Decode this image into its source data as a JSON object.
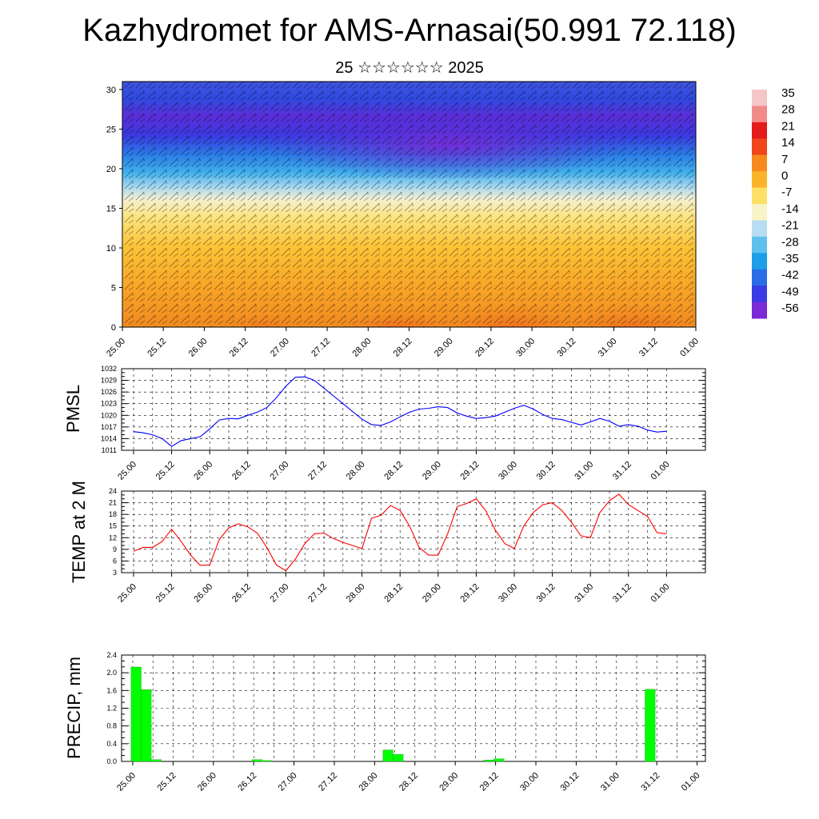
{
  "header": {
    "title": "Kazhydromet for AMS-Arnasai(50.991 72.118)",
    "subtitle": "25 ☆☆☆☆☆☆ 2025"
  },
  "colors": {
    "pmsl_line": "#0000ff",
    "temp_line": "#ff0000",
    "precip_bar": "#00ff00",
    "grid": "#000000"
  },
  "chart_data": [
    {
      "id": "cross_section",
      "type": "heatmap",
      "title": "",
      "xlabel": "",
      "ylabel": "",
      "x_ticks": [
        "25.00",
        "25.12",
        "26.00",
        "26.12",
        "27.00",
        "27.12",
        "28.00",
        "28.12",
        "29.00",
        "29.12",
        "30.00",
        "30.12",
        "31.00",
        "31.12",
        "01.00"
      ],
      "y_ticks": [
        0,
        5,
        10,
        15,
        20,
        25,
        30
      ],
      "ylim": [
        0,
        31
      ],
      "colorbar": {
        "labels": [
          "35",
          "28",
          "21",
          "14",
          "7",
          "0",
          "-7",
          "-14",
          "-21",
          "-28",
          "-35",
          "-42",
          "-49",
          "-56"
        ],
        "colors": [
          "#f4c6c6",
          "#f38a8a",
          "#e51a1a",
          "#f0441a",
          "#f78a1e",
          "#fbb42a",
          "#fde066",
          "#f8f4c8",
          "#b8dcf0",
          "#5ec0ee",
          "#1c9ee8",
          "#2a6ce8",
          "#3a3ae6",
          "#7a2ad6"
        ]
      }
    },
    {
      "id": "pmsl",
      "type": "line",
      "ylabel": "PMSL",
      "y_ticks": [
        1011,
        1014,
        1017,
        1020,
        1023,
        1026,
        1029,
        1032
      ],
      "ylim": [
        1011,
        1032
      ],
      "x_ticks": [
        "25.00",
        "25.12",
        "26.00",
        "26.12",
        "27.00",
        "27.12",
        "28.00",
        "28.12",
        "29.00",
        "29.12",
        "30.00",
        "30.12",
        "31.00",
        "31.12",
        "01.00"
      ],
      "series": [
        {
          "x": [
            0,
            3,
            6,
            9,
            12,
            15,
            18,
            21,
            24,
            27,
            30,
            33,
            36,
            39,
            42,
            45,
            48,
            51,
            54,
            57,
            60,
            63,
            66,
            69,
            72,
            75,
            78,
            81,
            84,
            87,
            90,
            93,
            96,
            99,
            102,
            105,
            108,
            111,
            114,
            117,
            120,
            123,
            126,
            129,
            132,
            135,
            138,
            141,
            144,
            147,
            150,
            153,
            156,
            159,
            162,
            165,
            168
          ],
          "values": [
            1015.8,
            1015.5,
            1015.0,
            1014.0,
            1012.0,
            1013.5,
            1014.0,
            1014.5,
            1016.5,
            1018.8,
            1019.2,
            1019.1,
            1020.0,
            1020.8,
            1022.0,
            1024.5,
            1027.5,
            1029.8,
            1029.9,
            1029.0,
            1027.0,
            1025.0,
            1023.0,
            1021.0,
            1019.0,
            1017.6,
            1017.4,
            1018.3,
            1019.6,
            1020.8,
            1021.6,
            1021.8,
            1022.2,
            1022.0,
            1020.6,
            1019.8,
            1019.2,
            1019.4,
            1019.8,
            1020.8,
            1021.8,
            1022.6,
            1021.6,
            1020.2,
            1019.2,
            1018.9,
            1018.2,
            1017.5,
            1018.3,
            1019.2,
            1018.5,
            1017.2,
            1017.6,
            1017.2,
            1016.2,
            1015.7,
            1015.9
          ]
        }
      ]
    },
    {
      "id": "temp",
      "type": "line",
      "ylabel": "TEMP at 2 M",
      "y_ticks": [
        3,
        6,
        9,
        12,
        15,
        18,
        21,
        24
      ],
      "ylim": [
        3,
        24
      ],
      "x_ticks": [
        "25.00",
        "25.12",
        "26.00",
        "26.12",
        "27.00",
        "27.12",
        "28.00",
        "28.12",
        "29.00",
        "29.12",
        "30.00",
        "30.12",
        "31.00",
        "31.12",
        "01.00"
      ],
      "series": [
        {
          "x": [
            0,
            3,
            6,
            9,
            12,
            15,
            18,
            21,
            24,
            27,
            30,
            33,
            36,
            39,
            42,
            45,
            48,
            51,
            54,
            57,
            60,
            63,
            66,
            69,
            72,
            75,
            78,
            81,
            84,
            87,
            90,
            93,
            96,
            99,
            102,
            105,
            108,
            111,
            114,
            117,
            120,
            123,
            126,
            129,
            132,
            135,
            138,
            141,
            144,
            147,
            150,
            153,
            156,
            159,
            162,
            165,
            168
          ],
          "values": [
            8.5,
            9.5,
            9.5,
            11.0,
            14.2,
            11.0,
            7.5,
            4.9,
            5.0,
            11.5,
            14.5,
            15.6,
            14.8,
            13.2,
            9.5,
            5.0,
            3.5,
            6.5,
            10.5,
            13.0,
            13.2,
            11.8,
            10.8,
            10.0,
            9.2,
            17.0,
            17.8,
            20.3,
            19.0,
            15.0,
            9.5,
            7.5,
            7.5,
            13.0,
            20.0,
            20.8,
            22.0,
            19.0,
            14.0,
            10.5,
            9.2,
            15.0,
            18.5,
            20.5,
            21.0,
            19.0,
            16.0,
            12.5,
            12.0,
            18.5,
            21.5,
            23.2,
            20.5,
            19.0,
            17.5,
            13.3,
            13.0
          ]
        }
      ]
    },
    {
      "id": "precip",
      "type": "bar",
      "ylabel": "PRECIP, mm",
      "y_ticks": [
        "0.0",
        "0.4",
        "0.8",
        "1.2",
        "1.6",
        "2.0",
        "2.4"
      ],
      "ylim": [
        0,
        2.4
      ],
      "x_ticks": [
        "25.00",
        "25.12",
        "26.00",
        "26.12",
        "27.00",
        "27.12",
        "28.00",
        "28.12",
        "29.00",
        "29.12",
        "30.00",
        "30.12",
        "31.00",
        "31.12",
        "01.00"
      ],
      "bars": [
        {
          "x": 1,
          "value": 2.13
        },
        {
          "x": 4,
          "value": 1.62
        },
        {
          "x": 7,
          "value": 0.04
        },
        {
          "x": 37,
          "value": 0.04
        },
        {
          "x": 40,
          "value": 0.02
        },
        {
          "x": 76,
          "value": 0.26
        },
        {
          "x": 79,
          "value": 0.16
        },
        {
          "x": 106,
          "value": 0.03
        },
        {
          "x": 109,
          "value": 0.06
        },
        {
          "x": 154,
          "value": 1.63
        }
      ]
    }
  ]
}
